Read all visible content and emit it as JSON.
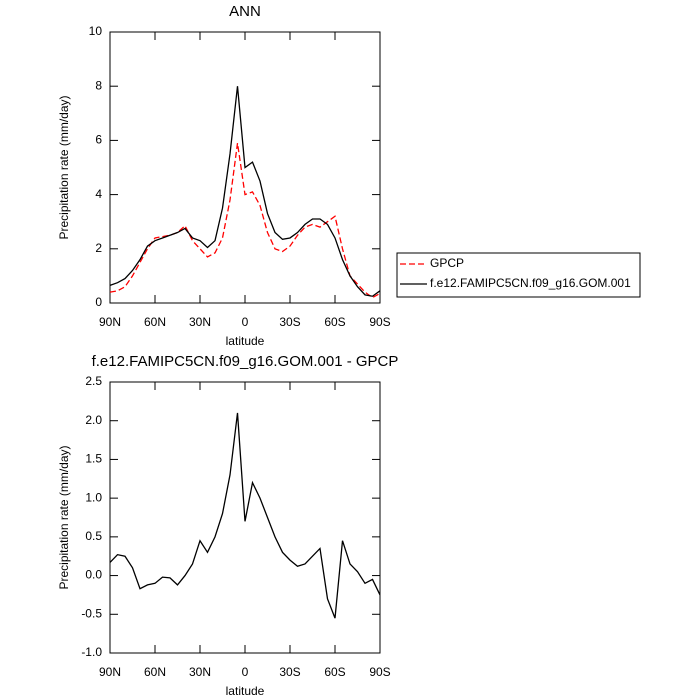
{
  "chart_data": [
    {
      "type": "line",
      "title": "ANN",
      "xlabel": "latitude",
      "ylabel": "Precipitation rate (mm/day)",
      "x": [
        90,
        85,
        80,
        75,
        70,
        65,
        60,
        55,
        50,
        45,
        40,
        35,
        30,
        25,
        20,
        15,
        10,
        5,
        0,
        -5,
        -10,
        -15,
        -20,
        -25,
        -30,
        -35,
        -40,
        -45,
        -50,
        -55,
        -60,
        -65,
        -70,
        -75,
        -80,
        -85,
        -90
      ],
      "xlim": [
        90,
        -90
      ],
      "xticks": [
        {
          "value": 90,
          "label": "90N"
        },
        {
          "value": 60,
          "label": "60N"
        },
        {
          "value": 30,
          "label": "30N"
        },
        0,
        {
          "value": -30,
          "label": "30S"
        },
        {
          "value": -60,
          "label": "60S"
        },
        {
          "value": -90,
          "label": "90S"
        }
      ],
      "ylim": [
        0,
        10
      ],
      "yticks": [
        0,
        2,
        4,
        6,
        8,
        10
      ],
      "legend": "right",
      "series": [
        {
          "name": "GPCP",
          "color": "#ff0000",
          "line_style": "dashed",
          "values": [
            0.4,
            0.45,
            0.6,
            1.0,
            1.5,
            2.0,
            2.4,
            2.45,
            2.5,
            2.6,
            2.85,
            2.3,
            2.0,
            1.7,
            1.85,
            2.4,
            3.8,
            5.9,
            4.0,
            4.1,
            3.6,
            2.6,
            2.0,
            1.9,
            2.1,
            2.5,
            2.8,
            2.9,
            2.8,
            3.0,
            3.2,
            2.0,
            1.0,
            0.7,
            0.4,
            0.2,
            0.35
          ]
        },
        {
          "name": "f.e12.FAMIPC5CN.f09_g16.GOM.001",
          "color": "#000000",
          "line_style": "solid",
          "values": [
            0.65,
            0.75,
            0.9,
            1.2,
            1.6,
            2.1,
            2.3,
            2.4,
            2.5,
            2.6,
            2.75,
            2.4,
            2.3,
            2.05,
            2.3,
            3.5,
            5.5,
            8.0,
            5.0,
            5.2,
            4.5,
            3.3,
            2.6,
            2.35,
            2.4,
            2.6,
            2.9,
            3.1,
            3.1,
            2.9,
            2.4,
            1.6,
            1.0,
            0.6,
            0.3,
            0.25,
            0.45
          ]
        }
      ]
    },
    {
      "type": "line",
      "title": "f.e12.FAMIPC5CN.f09_g16.GOM.001 - GPCP",
      "xlabel": "latitude",
      "ylabel": "Precipitation rate (mm/day)",
      "x": [
        90,
        85,
        80,
        75,
        70,
        65,
        60,
        55,
        50,
        45,
        40,
        35,
        30,
        25,
        20,
        15,
        10,
        5,
        0,
        -5,
        -10,
        -15,
        -20,
        -25,
        -30,
        -35,
        -40,
        -45,
        -50,
        -55,
        -60,
        -65,
        -70,
        -75,
        -80,
        -85,
        -90
      ],
      "xlim": [
        90,
        -90
      ],
      "xticks": [
        {
          "value": 90,
          "label": "90N"
        },
        {
          "value": 60,
          "label": "60N"
        },
        {
          "value": 30,
          "label": "30N"
        },
        0,
        {
          "value": -30,
          "label": "30S"
        },
        {
          "value": -60,
          "label": "60S"
        },
        {
          "value": -90,
          "label": "90S"
        }
      ],
      "ylim": [
        -1,
        2.5
      ],
      "yticks": [
        {
          "value": -1,
          "label": "-1.0"
        },
        -0.5,
        {
          "value": 0,
          "label": "0.0"
        },
        0.5,
        {
          "value": 1,
          "label": "1.0"
        },
        1.5,
        {
          "value": 2,
          "label": "2.0"
        },
        2.5
      ],
      "color": "#000000",
      "values": [
        0.17,
        0.27,
        0.25,
        0.1,
        -0.17,
        -0.12,
        -0.1,
        -0.02,
        -0.03,
        -0.12,
        0.0,
        0.15,
        0.45,
        0.3,
        0.5,
        0.8,
        1.3,
        2.1,
        0.7,
        1.2,
        1.0,
        0.75,
        0.5,
        0.3,
        0.2,
        0.12,
        0.15,
        0.25,
        0.35,
        -0.3,
        -0.55,
        0.45,
        0.15,
        0.05,
        -0.1,
        -0.05,
        -0.25
      ]
    }
  ]
}
